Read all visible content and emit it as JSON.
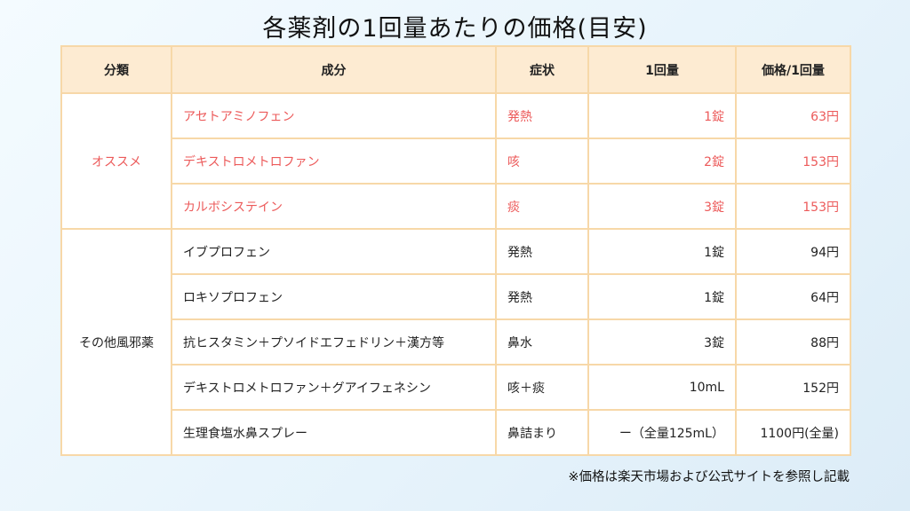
{
  "title": "各薬剤の1回量あたりの価格(目安)",
  "headers": [
    "分類",
    "成分",
    "症状",
    "1回量",
    "価格/1回量"
  ],
  "groups": [
    {
      "category": "オススメ",
      "rows": [
        {
          "ingredient": "アセトアミノフェン",
          "symptom": "発熱",
          "dose": "1錠",
          "price": "63円"
        },
        {
          "ingredient": "デキストロメトロファン",
          "symptom": "咳",
          "dose": "2錠",
          "price": "153円"
        },
        {
          "ingredient": "カルボシステイン",
          "symptom": "痰",
          "dose": "3錠",
          "price": "153円"
        }
      ]
    },
    {
      "category": "その他風邪薬",
      "rows": [
        {
          "ingredient": "イブプロフェン",
          "symptom": "発熱",
          "dose": "1錠",
          "price": "94円"
        },
        {
          "ingredient": "ロキソプロフェン",
          "symptom": "発熱",
          "dose": "1錠",
          "price": "64円"
        },
        {
          "ingredient": "抗ヒスタミン＋プソイドエフェドリン＋漢方等",
          "symptom": "鼻水",
          "dose": "3錠",
          "price": "88円"
        },
        {
          "ingredient": "デキストロメトロファン＋グアイフェネシン",
          "symptom": "咳＋痰",
          "dose": "10mL",
          "price": "152円"
        },
        {
          "ingredient": "生理食塩水鼻スプレー",
          "symptom": "鼻詰まり",
          "dose": "ー（全量125mL）",
          "price": "1100円(全量)"
        }
      ]
    }
  ],
  "note": "※価格は楽天市場および公式サイトを参照し記載",
  "colors": {
    "highlight_text": "#ec5a5a",
    "header_bg": "#fdebd2",
    "border": "#f7d8a8"
  }
}
